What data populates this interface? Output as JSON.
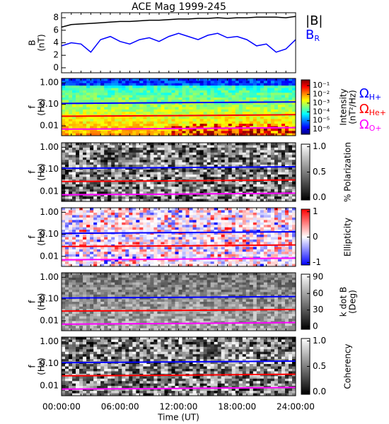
{
  "chart_data": [
    {
      "type": "line",
      "title": "ACE Mag 1999-245",
      "ylabel": "B",
      "yunit": "(nT)",
      "xlim": [
        0,
        24
      ],
      "ylim": [
        -0.8,
        8.8
      ],
      "yticks": [
        0,
        2,
        4,
        6,
        8
      ],
      "x": [
        0,
        1,
        2,
        3,
        4,
        5,
        6,
        7,
        8,
        9,
        10,
        11,
        12,
        13,
        14,
        15,
        16,
        17,
        18,
        19,
        20,
        21,
        22,
        23,
        24
      ],
      "series": [
        {
          "name": "|B|",
          "color": "#000000",
          "values": [
            6.5,
            6.9,
            7.0,
            7.1,
            7.2,
            7.3,
            7.4,
            7.4,
            7.5,
            7.6,
            7.6,
            7.7,
            7.8,
            7.8,
            7.9,
            7.9,
            8.0,
            7.9,
            8.0,
            8.0,
            8.1,
            8.1,
            8.1,
            8.0,
            8.2
          ]
        },
        {
          "name": "B",
          "subscript": "R",
          "color": "#0000ff",
          "values": [
            3.5,
            4.0,
            3.8,
            2.5,
            4.5,
            5.0,
            4.2,
            3.8,
            4.5,
            4.8,
            4.2,
            5.0,
            5.5,
            5.0,
            4.5,
            5.2,
            5.5,
            4.8,
            5.0,
            4.5,
            3.5,
            3.8,
            2.5,
            3.0,
            4.5
          ]
        }
      ]
    },
    {
      "type": "spectrogram",
      "ylabel": "f",
      "yunit": "(Hz)",
      "ylog": true,
      "xlim": [
        0,
        24
      ],
      "ylim": [
        0.0035,
        1.6
      ],
      "yticks": [
        {
          "value": 1,
          "label": "1.00"
        },
        {
          "value": 0.1,
          "label": "0.10"
        },
        {
          "value": 0.01,
          "label": "0.01"
        }
      ],
      "colorbar": {
        "label": "Intensity",
        "unit": "(nT²/Hz)",
        "log": true,
        "colormap": "jet",
        "lim": [
          2.8e-07,
          0.45
        ],
        "ticks": [
          {
            "value": 0.1,
            "label": "10⁻¹"
          },
          {
            "value": 0.01,
            "label": "10⁻²"
          },
          {
            "value": 0.001,
            "label": "10⁻³"
          },
          {
            "value": 0.0001,
            "label": "10⁻⁴"
          },
          {
            "value": 1e-05,
            "label": "10⁻⁵"
          },
          {
            "value": 1e-06,
            "label": "10⁻⁶"
          }
        ]
      },
      "x": [
        0,
        12,
        24
      ],
      "series": [
        {
          "name": "Ω",
          "subscript": "H+",
          "color": "#0000ff",
          "values": [
            0.11,
            0.12,
            0.13
          ]
        },
        {
          "name": "Ω",
          "subscript": "He+",
          "color": "#ff0000",
          "values": [
            0.028,
            0.03,
            0.033
          ]
        },
        {
          "name": "Ω",
          "subscript": "O+",
          "color": "#ff00ff",
          "values": [
            0.007,
            0.0075,
            0.0083
          ]
        }
      ]
    },
    {
      "type": "spectrogram",
      "ylabel": "f",
      "yunit": "(Hz)",
      "ylog": true,
      "xlim": [
        0,
        24
      ],
      "ylim": [
        0.0035,
        1.6
      ],
      "yticks": [
        {
          "value": 1,
          "label": "1.00"
        },
        {
          "value": 0.1,
          "label": "0.10"
        },
        {
          "value": 0.01,
          "label": "0.01"
        }
      ],
      "colorbar": {
        "label": "% Polarization",
        "colormap": "gray",
        "lim": [
          -0.05,
          1.05
        ],
        "ticks": [
          {
            "value": 0,
            "label": "0.0"
          },
          {
            "value": 0.5,
            "label": "0.5"
          },
          {
            "value": 1,
            "label": "1.0"
          }
        ]
      },
      "x": [
        0,
        12,
        24
      ],
      "series": [
        {
          "color": "#0000ff",
          "values": [
            0.11,
            0.12,
            0.13
          ]
        },
        {
          "color": "#ff0000",
          "values": [
            0.028,
            0.03,
            0.033
          ]
        },
        {
          "color": "#ff00ff",
          "values": [
            0.007,
            0.0075,
            0.0083
          ]
        }
      ]
    },
    {
      "type": "spectrogram",
      "ylabel": "f",
      "yunit": "(Hz)",
      "ylog": true,
      "xlim": [
        0,
        24
      ],
      "ylim": [
        0.0035,
        1.6
      ],
      "yticks": [
        {
          "value": 1,
          "label": "1.00"
        },
        {
          "value": 0.1,
          "label": "0.10"
        },
        {
          "value": 0.01,
          "label": "0.01"
        }
      ],
      "colorbar": {
        "label": "Ellipticity",
        "colormap": "bwr",
        "lim": [
          -1.1,
          1.1
        ],
        "ticks": [
          1,
          0,
          -1
        ]
      },
      "x": [
        0,
        12,
        24
      ],
      "series": [
        {
          "color": "#0000ff",
          "values": [
            0.11,
            0.12,
            0.13
          ]
        },
        {
          "color": "#ff0000",
          "values": [
            0.028,
            0.03,
            0.033
          ]
        },
        {
          "color": "#ff00ff",
          "values": [
            0.007,
            0.0075,
            0.0083
          ]
        }
      ]
    },
    {
      "type": "spectrogram",
      "ylabel": "f",
      "yunit": "(Hz)",
      "ylog": true,
      "xlim": [
        0,
        24
      ],
      "ylim": [
        0.0035,
        1.6
      ],
      "yticks": [
        {
          "value": 1,
          "label": "1.00"
        },
        {
          "value": 0.1,
          "label": "0.10"
        },
        {
          "value": 0.01,
          "label": "0.01"
        }
      ],
      "colorbar": {
        "label": "k dot B",
        "unit": "(Deg)",
        "colormap": "gray",
        "lim": [
          -5,
          95
        ],
        "ticks": [
          90,
          60,
          30,
          0
        ]
      },
      "x": [
        0,
        12,
        24
      ],
      "series": [
        {
          "color": "#0000ff",
          "values": [
            0.11,
            0.12,
            0.13
          ]
        },
        {
          "color": "#ff0000",
          "values": [
            0.028,
            0.03,
            0.033
          ]
        },
        {
          "color": "#ff00ff",
          "values": [
            0.007,
            0.0075,
            0.0083
          ]
        }
      ]
    },
    {
      "type": "spectrogram",
      "ylabel": "f",
      "yunit": "(Hz)",
      "ylog": true,
      "xlim": [
        0,
        24
      ],
      "ylim": [
        0.0035,
        1.6
      ],
      "yticks": [
        {
          "value": 1,
          "label": "1.00"
        },
        {
          "value": 0.1,
          "label": "0.10"
        },
        {
          "value": 0.01,
          "label": "0.01"
        }
      ],
      "colorbar": {
        "label": "Coherency",
        "colormap": "gray",
        "lim": [
          -0.05,
          1.05
        ],
        "ticks": [
          {
            "value": 1,
            "label": "1.0"
          },
          {
            "value": 0.5,
            "label": "0.5"
          },
          {
            "value": 0,
            "label": "0.0"
          }
        ]
      },
      "x": [
        0,
        12,
        24
      ],
      "series": [
        {
          "color": "#0000ff",
          "values": [
            0.11,
            0.12,
            0.13
          ]
        },
        {
          "color": "#ff0000",
          "values": [
            0.028,
            0.03,
            0.033
          ]
        },
        {
          "color": "#ff00ff",
          "values": [
            0.007,
            0.0075,
            0.0083
          ]
        }
      ],
      "xlabel": "Time (UT)",
      "xticks": [
        {
          "value": 0,
          "label": "00:00:00"
        },
        {
          "value": 6,
          "label": "06:00:00"
        },
        {
          "value": 12,
          "label": "12:00:00"
        },
        {
          "value": 18,
          "label": "18:00:00"
        },
        {
          "value": 24,
          "label": "24:00:00"
        }
      ]
    }
  ]
}
